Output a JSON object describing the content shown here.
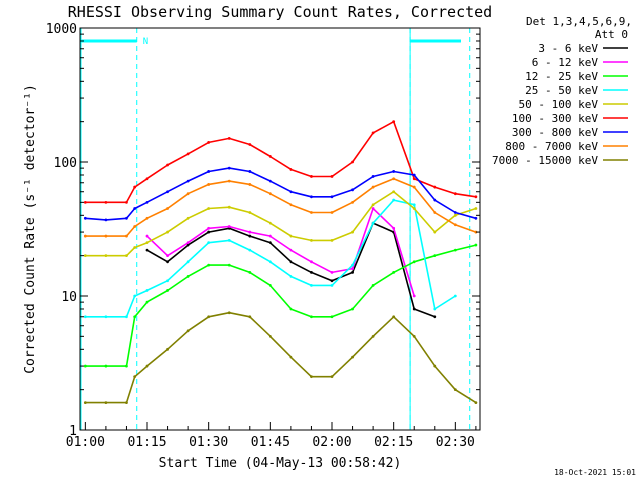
{
  "chart_data": {
    "type": "line",
    "title": "RHESSI Observing Summary Count Rates, Corrected",
    "xlabel": "Start Time (04-May-13 00:58:42)",
    "ylabel": "Corrected Count Rate (s⁻¹ detector⁻¹)",
    "yscale": "log",
    "ylim": [
      1,
      1000
    ],
    "xlim": [
      "00:58:42",
      "02:36:00"
    ],
    "x_ticks": [
      "01:00",
      "01:15",
      "01:30",
      "01:45",
      "02:00",
      "02:15",
      "02:30"
    ],
    "y_ticks": [
      "1",
      "10",
      "100",
      "1000"
    ],
    "legend_header": [
      "Det 1,3,4,5,6,9,",
      "Att 0"
    ],
    "legend_placement": "right",
    "timestamp": "18-Oct-2021 15:01",
    "annotations": {
      "night_label": "N",
      "night_start": "01:12:30",
      "night_end": "02:19:00",
      "attenuator_dashes": [
        "01:12:30",
        "02:19:00",
        "02:33:30"
      ]
    },
    "times": [
      "01:00",
      "01:05",
      "01:10",
      "01:12",
      "01:15",
      "01:20",
      "01:25",
      "01:30",
      "01:35",
      "01:40",
      "01:45",
      "01:50",
      "01:55",
      "02:00",
      "02:05",
      "02:10",
      "02:15",
      "02:20",
      "02:25",
      "02:30",
      "02:35"
    ],
    "series": [
      {
        "name": "3 - 6 keV",
        "color": "#000000",
        "values": [
          null,
          null,
          null,
          null,
          22,
          18,
          24,
          30,
          32,
          28,
          25,
          18,
          15,
          13,
          15,
          35,
          30,
          8,
          7,
          null,
          null
        ]
      },
      {
        "name": "6 - 12 keV",
        "color": "#ff00ff",
        "values": [
          null,
          null,
          null,
          null,
          28,
          20,
          25,
          32,
          33,
          30,
          28,
          22,
          18,
          15,
          16,
          45,
          32,
          10,
          null,
          null,
          null
        ]
      },
      {
        "name": "12 - 25 keV",
        "color": "#00ff00",
        "values": [
          3,
          3,
          3,
          7,
          9,
          11,
          14,
          17,
          17,
          15,
          12,
          8,
          7,
          7,
          8,
          12,
          15,
          18,
          20,
          22,
          24
        ]
      },
      {
        "name": "25 - 50 keV",
        "color": "#00ffff",
        "values": [
          7,
          7,
          7,
          10,
          11,
          13,
          18,
          25,
          26,
          22,
          18,
          14,
          12,
          12,
          17,
          35,
          52,
          48,
          8,
          10,
          null
        ]
      },
      {
        "name": "50 - 100 keV",
        "color": "#cccc00",
        "values": [
          20,
          20,
          20,
          23,
          25,
          30,
          38,
          45,
          46,
          42,
          35,
          28,
          26,
          26,
          30,
          48,
          60,
          45,
          30,
          40,
          45
        ]
      },
      {
        "name": "100 - 300 keV",
        "color": "#ff0000",
        "values": [
          50,
          50,
          50,
          65,
          75,
          95,
          115,
          140,
          150,
          135,
          110,
          88,
          78,
          78,
          100,
          165,
          200,
          75,
          65,
          58,
          55
        ]
      },
      {
        "name": "300 - 800 keV",
        "color": "#0000ff",
        "values": [
          38,
          37,
          38,
          45,
          50,
          60,
          72,
          85,
          90,
          85,
          72,
          60,
          55,
          55,
          62,
          78,
          85,
          80,
          52,
          42,
          38
        ]
      },
      {
        "name": "800 - 7000 keV",
        "color": "#ff8000",
        "values": [
          28,
          28,
          28,
          33,
          38,
          45,
          58,
          68,
          72,
          68,
          58,
          48,
          42,
          42,
          50,
          65,
          75,
          65,
          42,
          34,
          30
        ]
      },
      {
        "name": "7000 - 15000 keV",
        "color": "#808000",
        "values": [
          1.6,
          1.6,
          1.6,
          2.5,
          3,
          4,
          5.5,
          7,
          7.5,
          7,
          5,
          3.5,
          2.5,
          2.5,
          3.5,
          5,
          7,
          5,
          3,
          2,
          1.6
        ]
      }
    ]
  }
}
